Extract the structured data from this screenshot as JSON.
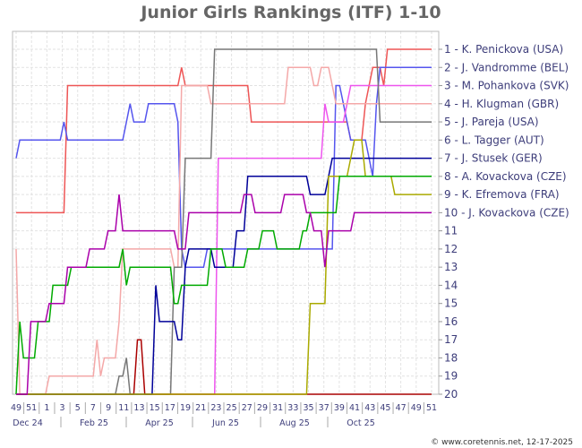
{
  "chart_data": {
    "type": "line",
    "title": "Junior Girls Rankings (ITF) 1-10",
    "y_axis": {
      "range": [
        1,
        20
      ],
      "reversed": true,
      "tick_labels": [
        "1 - K. Penickova (USA)",
        "2 - J. Vandromme (BEL)",
        "3 - M. Pohankova (SVK)",
        "4 - H. Klugman (GBR)",
        "5 - J. Pareja (USA)",
        "6 - L. Tagger (AUT)",
        "7 - J. Stusek (GER)",
        "8 - A. Kovackova (CZE)",
        "9 - K. Efremova (FRA)",
        "10 - J. Kovackova (CZE)",
        "11",
        "12",
        "13",
        "14",
        "15",
        "16",
        "17",
        "18",
        "19",
        "20"
      ]
    },
    "x_axis": {
      "week_labels": [
        "49",
        "51",
        "1",
        "3",
        "5",
        "7",
        "9",
        "11",
        "13",
        "15",
        "17",
        "19",
        "21",
        "23",
        "25",
        "27",
        "29",
        "31",
        "33",
        "35",
        "37",
        "39",
        "41",
        "43",
        "45",
        "47",
        "49",
        "51"
      ],
      "month_labels": [
        "Dec 24",
        "Feb 25",
        "Apr 25",
        "Jun 25",
        "Aug 25",
        "Oct 25"
      ]
    },
    "grid": true,
    "series": [
      {
        "color": "#ee5555",
        "values": [
          10,
          10,
          10,
          10,
          10,
          10,
          10,
          10,
          10,
          10,
          10,
          10,
          10,
          10,
          3,
          3,
          3,
          3,
          3,
          3,
          3,
          3,
          3,
          3,
          3,
          3,
          3,
          3,
          3,
          3,
          3,
          3,
          3,
          3,
          3,
          3,
          3,
          3,
          3,
          3,
          3,
          3,
          3,
          3,
          3,
          2,
          3,
          3,
          3,
          3,
          3,
          3,
          3,
          3,
          3,
          3,
          3,
          3,
          3,
          3,
          3,
          3,
          3,
          3,
          5,
          5,
          5,
          5,
          5,
          5,
          5,
          5,
          5,
          5,
          5,
          5,
          5,
          5,
          5,
          5,
          5,
          5,
          5,
          5,
          5,
          5,
          5,
          5,
          5,
          5,
          5,
          6,
          6,
          6,
          6,
          4,
          3,
          2,
          2,
          2,
          3,
          1,
          1,
          1,
          1,
          1,
          1,
          1,
          1,
          1,
          1,
          1,
          1,
          1
        ]
      },
      {
        "color": "#5555ee",
        "values": [
          7,
          6,
          6,
          6,
          6,
          6,
          6,
          6,
          6,
          6,
          6,
          6,
          6,
          5,
          6,
          6,
          6,
          6,
          6,
          6,
          6,
          6,
          6,
          6,
          6,
          6,
          6,
          6,
          6,
          6,
          5,
          4,
          5,
          5,
          5,
          5,
          4,
          4,
          4,
          4,
          4,
          4,
          4,
          4,
          5,
          12,
          13,
          13,
          13,
          13,
          13,
          13,
          12,
          12,
          12,
          12,
          12,
          12,
          12,
          12,
          12,
          12,
          12,
          12,
          12,
          12,
          12,
          12,
          12,
          12,
          12,
          12,
          12,
          12,
          12,
          12,
          12,
          12,
          12,
          12,
          12,
          12,
          12,
          12,
          12,
          12,
          12,
          3,
          3,
          4,
          5,
          6,
          6,
          6,
          6,
          6,
          7,
          8,
          4,
          2,
          2,
          2,
          2,
          2,
          2,
          2,
          2,
          2,
          2,
          2,
          2,
          2,
          2,
          2
        ]
      },
      {
        "color": "#ee55ee",
        "values": [
          20,
          20,
          20,
          20,
          20,
          20,
          20,
          20,
          20,
          20,
          20,
          20,
          20,
          20,
          20,
          20,
          20,
          20,
          20,
          20,
          20,
          20,
          20,
          20,
          20,
          20,
          20,
          20,
          20,
          20,
          20,
          20,
          20,
          20,
          20,
          20,
          20,
          20,
          20,
          20,
          20,
          20,
          20,
          20,
          20,
          20,
          20,
          20,
          20,
          20,
          20,
          20,
          20,
          20,
          20,
          7,
          7,
          7,
          7,
          7,
          7,
          7,
          7,
          7,
          7,
          7,
          7,
          7,
          7,
          7,
          7,
          7,
          7,
          7,
          7,
          7,
          7,
          7,
          7,
          7,
          7,
          7,
          7,
          7,
          4,
          5,
          5,
          5,
          5,
          5,
          4,
          3,
          3,
          3,
          3,
          3,
          3,
          3,
          3,
          3,
          3,
          3,
          3,
          3,
          3,
          3,
          3,
          3,
          3,
          3,
          3,
          3,
          3,
          3
        ]
      },
      {
        "color": "#f4a8a8",
        "values": [
          12,
          20,
          20,
          20,
          20,
          20,
          20,
          20,
          20,
          19,
          19,
          19,
          19,
          19,
          19,
          19,
          19,
          19,
          19,
          19,
          19,
          19,
          17,
          19,
          18,
          18,
          18,
          18,
          16,
          12,
          12,
          12,
          12,
          12,
          12,
          12,
          12,
          12,
          12,
          12,
          12,
          12,
          12,
          13,
          13,
          3,
          3,
          3,
          3,
          3,
          3,
          3,
          3,
          4,
          4,
          4,
          4,
          4,
          4,
          4,
          4,
          4,
          4,
          4,
          4,
          4,
          4,
          4,
          4,
          4,
          4,
          4,
          4,
          4,
          2,
          2,
          2,
          2,
          2,
          2,
          2,
          3,
          3,
          2,
          2,
          2,
          3,
          4,
          4,
          4,
          4,
          4,
          4,
          4,
          4,
          4,
          4,
          4,
          4,
          4,
          4,
          4,
          4,
          4,
          4,
          4,
          4,
          4,
          4,
          4,
          4,
          4,
          4,
          4
        ]
      },
      {
        "color": "#777777",
        "values": [
          20,
          20,
          20,
          20,
          20,
          20,
          20,
          20,
          20,
          20,
          20,
          20,
          20,
          20,
          20,
          20,
          20,
          20,
          20,
          20,
          20,
          20,
          20,
          20,
          20,
          20,
          20,
          20,
          19,
          19,
          18,
          20,
          20,
          20,
          20,
          20,
          20,
          20,
          20,
          20,
          20,
          20,
          20,
          13,
          13,
          13,
          7,
          7,
          7,
          7,
          7,
          7,
          7,
          7,
          1,
          1,
          1,
          1,
          1,
          1,
          1,
          1,
          1,
          1,
          1,
          1,
          1,
          1,
          1,
          1,
          1,
          1,
          1,
          1,
          1,
          1,
          1,
          1,
          1,
          1,
          1,
          1,
          1,
          1,
          1,
          1,
          1,
          1,
          1,
          1,
          1,
          1,
          1,
          1,
          1,
          1,
          1,
          1,
          1,
          5,
          5,
          5,
          5,
          5,
          5,
          5,
          5,
          5,
          5,
          5,
          5,
          5,
          5,
          5
        ]
      },
      {
        "color": "#aa0000",
        "values": [
          20,
          20,
          20,
          20,
          20,
          20,
          20,
          20,
          20,
          20,
          20,
          20,
          20,
          20,
          20,
          20,
          20,
          20,
          20,
          20,
          20,
          20,
          20,
          20,
          20,
          20,
          20,
          20,
          20,
          20,
          20,
          20,
          20,
          17,
          17,
          20,
          20,
          20,
          20,
          20,
          20,
          20,
          20,
          20,
          20,
          20,
          20,
          20,
          20,
          20,
          20,
          20,
          20,
          20,
          20,
          20,
          20,
          20,
          20,
          20,
          20,
          20,
          20,
          20,
          20,
          20,
          20,
          20,
          20,
          20,
          20,
          20,
          20,
          20,
          20,
          20,
          20,
          20,
          20,
          20,
          20,
          20,
          20,
          20,
          20,
          20,
          20,
          20,
          20,
          20,
          20,
          20,
          20,
          20,
          20,
          20,
          20,
          20,
          20,
          20,
          20,
          20,
          20,
          20,
          20,
          20,
          20,
          20,
          20,
          20,
          20,
          20,
          20,
          20
        ]
      },
      {
        "color": "#000099",
        "values": [
          20,
          20,
          20,
          20,
          20,
          20,
          20,
          20,
          20,
          20,
          20,
          20,
          20,
          20,
          20,
          20,
          20,
          20,
          20,
          20,
          20,
          20,
          20,
          20,
          20,
          20,
          20,
          20,
          20,
          20,
          20,
          20,
          20,
          20,
          20,
          20,
          20,
          20,
          14,
          16,
          16,
          16,
          16,
          16,
          17,
          17,
          13,
          12,
          12,
          12,
          12,
          12,
          12,
          12,
          13,
          13,
          13,
          13,
          13,
          13,
          11,
          11,
          11,
          8,
          8,
          8,
          8,
          8,
          8,
          8,
          8,
          8,
          8,
          8,
          8,
          8,
          8,
          8,
          8,
          8,
          9,
          9,
          9,
          9,
          9,
          8,
          7,
          7,
          7,
          7,
          7,
          7,
          7,
          7,
          7,
          7,
          7,
          7,
          7,
          7,
          7,
          7,
          7,
          7,
          7,
          7,
          7,
          7,
          7,
          7,
          7,
          7,
          7,
          7
        ]
      },
      {
        "color": "#aaaa00",
        "values": [
          20,
          20,
          20,
          20,
          20,
          20,
          20,
          20,
          20,
          20,
          20,
          20,
          20,
          20,
          20,
          20,
          20,
          20,
          20,
          20,
          20,
          20,
          20,
          20,
          20,
          20,
          20,
          20,
          20,
          20,
          20,
          20,
          20,
          20,
          20,
          20,
          20,
          20,
          20,
          20,
          20,
          20,
          20,
          20,
          20,
          20,
          20,
          20,
          20,
          20,
          20,
          20,
          20,
          20,
          20,
          20,
          20,
          20,
          20,
          20,
          20,
          20,
          20,
          20,
          20,
          20,
          20,
          20,
          20,
          20,
          20,
          20,
          20,
          20,
          20,
          20,
          20,
          20,
          20,
          20,
          15,
          15,
          15,
          15,
          15,
          8,
          8,
          8,
          8,
          8,
          8,
          7,
          6,
          6,
          6,
          8,
          8,
          8,
          8,
          8,
          8,
          8,
          8,
          9,
          9,
          9,
          9,
          9,
          9,
          9,
          9,
          9,
          9,
          9
        ]
      },
      {
        "color": "#00aa00",
        "values": [
          20,
          16,
          18,
          18,
          18,
          18,
          16,
          16,
          16,
          16,
          14,
          14,
          14,
          14,
          14,
          13,
          13,
          13,
          13,
          13,
          13,
          13,
          13,
          13,
          13,
          13,
          13,
          13,
          13,
          12,
          14,
          13,
          13,
          13,
          13,
          13,
          13,
          13,
          13,
          13,
          13,
          13,
          13,
          15,
          15,
          14,
          14,
          14,
          14,
          14,
          14,
          14,
          14,
          12,
          12,
          12,
          12,
          13,
          13,
          13,
          13,
          13,
          13,
          12,
          12,
          12,
          12,
          11,
          11,
          11,
          11,
          12,
          12,
          12,
          12,
          12,
          12,
          12,
          11,
          11,
          10,
          10,
          10,
          10,
          10,
          10,
          10,
          10,
          8,
          8,
          8,
          8,
          8,
          8,
          8,
          8,
          8,
          8,
          8,
          8,
          8,
          8,
          8,
          8,
          8,
          8,
          8,
          8,
          8,
          8,
          8,
          8,
          8,
          8
        ]
      },
      {
        "color": "#aa00aa",
        "values": [
          20,
          20,
          20,
          20,
          16,
          16,
          16,
          16,
          16,
          15,
          15,
          15,
          15,
          15,
          13,
          13,
          13,
          13,
          13,
          13,
          12,
          12,
          12,
          12,
          12,
          11,
          11,
          11,
          9,
          11,
          11,
          11,
          11,
          11,
          11,
          11,
          11,
          11,
          11,
          11,
          11,
          11,
          11,
          11,
          12,
          12,
          12,
          10,
          10,
          10,
          10,
          10,
          10,
          10,
          10,
          10,
          10,
          10,
          10,
          10,
          10,
          10,
          9,
          9,
          9,
          10,
          10,
          10,
          10,
          10,
          10,
          10,
          10,
          9,
          9,
          9,
          9,
          9,
          9,
          10,
          10,
          11,
          11,
          11,
          13,
          11,
          11,
          11,
          11,
          11,
          11,
          11,
          10,
          10,
          10,
          10,
          10,
          10,
          10,
          10,
          10,
          10,
          10,
          10,
          10,
          10,
          10,
          10,
          10,
          10,
          10,
          10,
          10,
          10
        ]
      }
    ]
  },
  "footer": {
    "copyright": "© www.coretennis.net, 12-17-2025"
  }
}
